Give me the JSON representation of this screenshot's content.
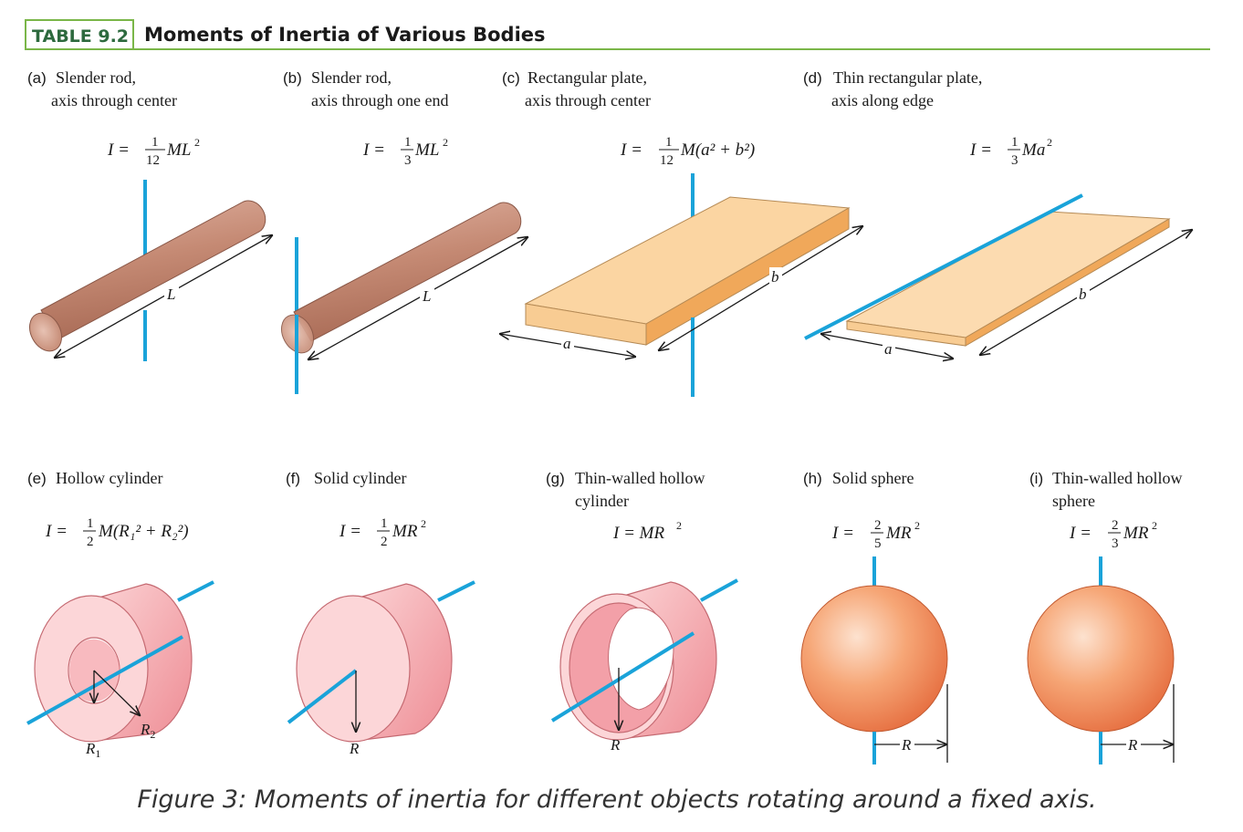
{
  "header": {
    "table_tag": "TABLE 9.2",
    "title": "Moments of Inertia of Various Bodies"
  },
  "colors": {
    "accent_green": "#7ab648",
    "tag_text": "#2d6a3e",
    "axis_blue": "#1aa3d9",
    "rod_brown": "#c58a74",
    "plate_orange": "#f5c48a",
    "cylinder_pink": "#f4a0a6",
    "sphere_orange": "#f29560"
  },
  "bodies": [
    {
      "id": "a",
      "letter": "(a)",
      "line1": "Slender rod,",
      "line2": "axis through center",
      "formula": {
        "lhs": "I =",
        "num": "1",
        "den": "12",
        "rhs": "ML",
        "sup": "2",
        "tail": ""
      },
      "dims": [
        "L"
      ]
    },
    {
      "id": "b",
      "letter": "(b)",
      "line1": "Slender rod,",
      "line2": "axis through one end",
      "formula": {
        "lhs": "I =",
        "num": "1",
        "den": "3",
        "rhs": "ML",
        "sup": "2",
        "tail": ""
      },
      "dims": [
        "L"
      ]
    },
    {
      "id": "c",
      "letter": "(c)",
      "line1": "Rectangular plate,",
      "line2": "axis through center",
      "formula": {
        "lhs": "I =",
        "num": "1",
        "den": "12",
        "rhs": "M(a² + b²)",
        "sup": "",
        "tail": ""
      },
      "dims": [
        "a",
        "b"
      ]
    },
    {
      "id": "d",
      "letter": "(d)",
      "line1": "Thin rectangular plate,",
      "line2": "axis along edge",
      "formula": {
        "lhs": "I =",
        "num": "1",
        "den": "3",
        "rhs": "Ma",
        "sup": "2",
        "tail": ""
      },
      "dims": [
        "a",
        "b"
      ]
    },
    {
      "id": "e",
      "letter": "(e)",
      "line1": "Hollow cylinder",
      "line2": "",
      "formula": {
        "lhs": "I =",
        "num": "1",
        "den": "2",
        "rhs": "M(R₁² + R₂²)",
        "sup": "",
        "tail": ""
      },
      "dims": [
        "R1",
        "R2"
      ]
    },
    {
      "id": "f",
      "letter": "(f)",
      "line1": "Solid cylinder",
      "line2": "",
      "formula": {
        "lhs": "I =",
        "num": "1",
        "den": "2",
        "rhs": "MR",
        "sup": "2",
        "tail": ""
      },
      "dims": [
        "R"
      ]
    },
    {
      "id": "g",
      "letter": "(g)",
      "line1": "Thin-walled hollow",
      "line2": "cylinder",
      "formula": {
        "lhs": "I = MR",
        "num": "",
        "den": "",
        "rhs": "",
        "sup": "2",
        "tail": ""
      },
      "dims": [
        "R"
      ]
    },
    {
      "id": "h",
      "letter": "(h)",
      "line1": "Solid sphere",
      "line2": "",
      "formula": {
        "lhs": "I =",
        "num": "2",
        "den": "5",
        "rhs": "MR",
        "sup": "2",
        "tail": ""
      },
      "dims": [
        "R"
      ]
    },
    {
      "id": "i",
      "letter": "(i)",
      "line1": "Thin-walled hollow",
      "line2": "sphere",
      "formula": {
        "lhs": "I =",
        "num": "2",
        "den": "3",
        "rhs": "MR",
        "sup": "2",
        "tail": ""
      },
      "dims": [
        "R"
      ]
    }
  ],
  "caption": "Figure 3: Moments of inertia for different objects rotating around a fixed axis."
}
